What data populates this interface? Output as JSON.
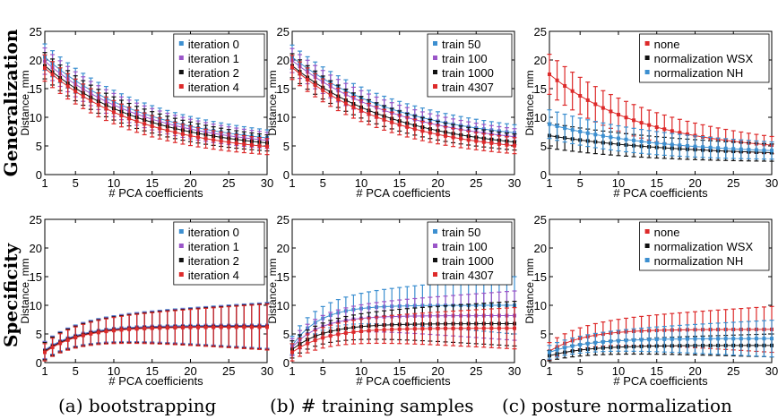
{
  "figure": {
    "row_labels": [
      "Generalization",
      "Specificity"
    ],
    "captions": [
      "(a) bootstrapping",
      "(b) # training samples",
      "(c) posture normalization"
    ]
  },
  "chart_data": [
    {
      "type": "line",
      "panel": "generalization-bootstrapping",
      "xlabel": "# PCA coefficients",
      "ylabel": "Distance, mm",
      "xlim": [
        1,
        30
      ],
      "ylim": [
        0,
        25
      ],
      "xticks": [
        1,
        5,
        10,
        15,
        20,
        25,
        30
      ],
      "yticks": [
        0,
        5,
        10,
        15,
        20,
        25
      ],
      "grid": false,
      "legend": "top-right",
      "x_range": [
        1,
        30
      ],
      "series": [
        {
          "name": "iteration 0",
          "color": "#3c8fd0",
          "start": 20.5,
          "end": 4.6,
          "rate": 0.075,
          "err_start": 2.3,
          "err_end": 1.4
        },
        {
          "name": "iteration 1",
          "color": "#9a55c8",
          "start": 19.8,
          "end": 4.2,
          "rate": 0.075,
          "err_start": 2.3,
          "err_end": 1.4
        },
        {
          "name": "iteration 2",
          "color": "#111111",
          "start": 19.0,
          "end": 3.8,
          "rate": 0.075,
          "err_start": 2.3,
          "err_end": 1.4
        },
        {
          "name": "iteration 4",
          "color": "#dd2a2a",
          "start": 18.6,
          "end": 3.3,
          "rate": 0.078,
          "err_start": 2.3,
          "err_end": 1.4
        }
      ]
    },
    {
      "type": "line",
      "panel": "generalization-training-samples",
      "xlabel": "# PCA coefficients",
      "ylabel": "Distance, mm",
      "xlim": [
        1,
        30
      ],
      "ylim": [
        0,
        25
      ],
      "xticks": [
        1,
        5,
        10,
        15,
        20,
        25,
        30
      ],
      "yticks": [
        0,
        5,
        10,
        15,
        20,
        25
      ],
      "grid": false,
      "legend": "top-right",
      "x_range": [
        1,
        30
      ],
      "series": [
        {
          "name": "train 50",
          "color": "#3c8fd0",
          "start": 20.5,
          "end": 5.3,
          "rate": 0.07,
          "err_start": 2.1,
          "err_end": 1.4
        },
        {
          "name": "train 100",
          "color": "#9a55c8",
          "start": 19.9,
          "end": 4.6,
          "rate": 0.07,
          "err_start": 2.1,
          "err_end": 1.4
        },
        {
          "name": "train 1000",
          "color": "#111111",
          "start": 19.0,
          "end": 3.8,
          "rate": 0.072,
          "err_start": 2.1,
          "err_end": 1.4
        },
        {
          "name": "train 4307",
          "color": "#dd2a2a",
          "start": 18.7,
          "end": 3.3,
          "rate": 0.075,
          "err_start": 2.1,
          "err_end": 1.4
        }
      ]
    },
    {
      "type": "line",
      "panel": "generalization-posture-normalization",
      "xlabel": "# PCA coefficients",
      "ylabel": "Distance, mm",
      "xlim": [
        1,
        30
      ],
      "ylim": [
        0,
        25
      ],
      "xticks": [
        1,
        5,
        10,
        15,
        20,
        25,
        30
      ],
      "yticks": [
        0,
        5,
        10,
        15,
        20,
        25
      ],
      "grid": false,
      "legend": "top-right",
      "x_range": [
        1,
        30
      ],
      "series": [
        {
          "name": "none",
          "color": "#dd2a2a",
          "start": 17.5,
          "end": 3.8,
          "rate": 0.08,
          "err_start": 3.5,
          "err_end": 1.5
        },
        {
          "name": "normalization WSX",
          "color": "#111111",
          "start": 6.8,
          "end": 3.2,
          "rate": 0.06,
          "err_start": 2.2,
          "err_end": 1.5
        },
        {
          "name": "normalization NH",
          "color": "#3c8fd0",
          "start": 8.8,
          "end": 3.5,
          "rate": 0.07,
          "err_start": 2.5,
          "err_end": 1.5
        }
      ]
    },
    {
      "type": "line",
      "panel": "specificity-bootstrapping",
      "xlabel": "# PCA coefficients",
      "ylabel": "Distance, mm",
      "xlim": [
        1,
        30
      ],
      "ylim": [
        0,
        25
      ],
      "xticks": [
        1,
        5,
        10,
        15,
        20,
        25,
        30
      ],
      "yticks": [
        0,
        5,
        10,
        15,
        20,
        25
      ],
      "grid": false,
      "legend": "top-right",
      "x_range": [
        1,
        30
      ],
      "series": [
        {
          "name": "iteration 0",
          "color": "#3c8fd0",
          "start": 2.2,
          "end": 6.5,
          "rate": 0.22,
          "err_start": 1.5,
          "err_end": 4.0
        },
        {
          "name": "iteration 1",
          "color": "#9a55c8",
          "start": 2.1,
          "end": 6.4,
          "rate": 0.22,
          "err_start": 1.5,
          "err_end": 4.0
        },
        {
          "name": "iteration 2",
          "color": "#111111",
          "start": 2.0,
          "end": 6.3,
          "rate": 0.22,
          "err_start": 1.5,
          "err_end": 4.0
        },
        {
          "name": "iteration 4",
          "color": "#dd2a2a",
          "start": 1.8,
          "end": 6.2,
          "rate": 0.22,
          "err_start": 1.5,
          "err_end": 4.0
        }
      ]
    },
    {
      "type": "line",
      "panel": "specificity-training-samples",
      "xlabel": "# PCA coefficients",
      "ylabel": "Distance, mm",
      "xlim": [
        1,
        30
      ],
      "ylim": [
        0,
        25
      ],
      "xticks": [
        1,
        5,
        10,
        15,
        20,
        25,
        30
      ],
      "yticks": [
        0,
        5,
        10,
        15,
        20,
        25
      ],
      "grid": false,
      "legend": "top-right",
      "x_range": [
        1,
        30
      ],
      "series": [
        {
          "name": "train 50",
          "color": "#3c8fd0",
          "start": 3.0,
          "end": 10.0,
          "rate": 0.28,
          "err_start": 1.6,
          "err_end": 5.0
        },
        {
          "name": "train 100",
          "color": "#9a55c8",
          "start": 2.7,
          "end": 8.2,
          "rate": 0.27,
          "err_start": 1.5,
          "err_end": 4.3
        },
        {
          "name": "train 1000",
          "color": "#111111",
          "start": 2.3,
          "end": 6.8,
          "rate": 0.24,
          "err_start": 1.5,
          "err_end": 3.9
        },
        {
          "name": "train 4307",
          "color": "#dd2a2a",
          "start": 1.8,
          "end": 6.0,
          "rate": 0.23,
          "err_start": 1.5,
          "err_end": 3.6
        }
      ]
    },
    {
      "type": "line",
      "panel": "specificity-posture-normalization",
      "xlabel": "# PCA coefficients",
      "ylabel": "Distance, mm",
      "xlim": [
        1,
        30
      ],
      "ylim": [
        0,
        25
      ],
      "xticks": [
        1,
        5,
        10,
        15,
        20,
        25,
        30
      ],
      "yticks": [
        0,
        5,
        10,
        15,
        20,
        25
      ],
      "grid": false,
      "legend": "top-right",
      "x_range": [
        1,
        30
      ],
      "series": [
        {
          "name": "none",
          "color": "#dd2a2a",
          "start": 2.0,
          "end": 5.8,
          "rate": 0.22,
          "err_start": 1.5,
          "err_end": 4.0
        },
        {
          "name": "normalization WSX",
          "color": "#111111",
          "start": 1.2,
          "end": 3.0,
          "rate": 0.2,
          "err_start": 0.9,
          "err_end": 2.0
        },
        {
          "name": "normalization NH",
          "color": "#3c8fd0",
          "start": 1.8,
          "end": 4.2,
          "rate": 0.2,
          "err_start": 1.2,
          "err_end": 3.2
        }
      ]
    }
  ]
}
